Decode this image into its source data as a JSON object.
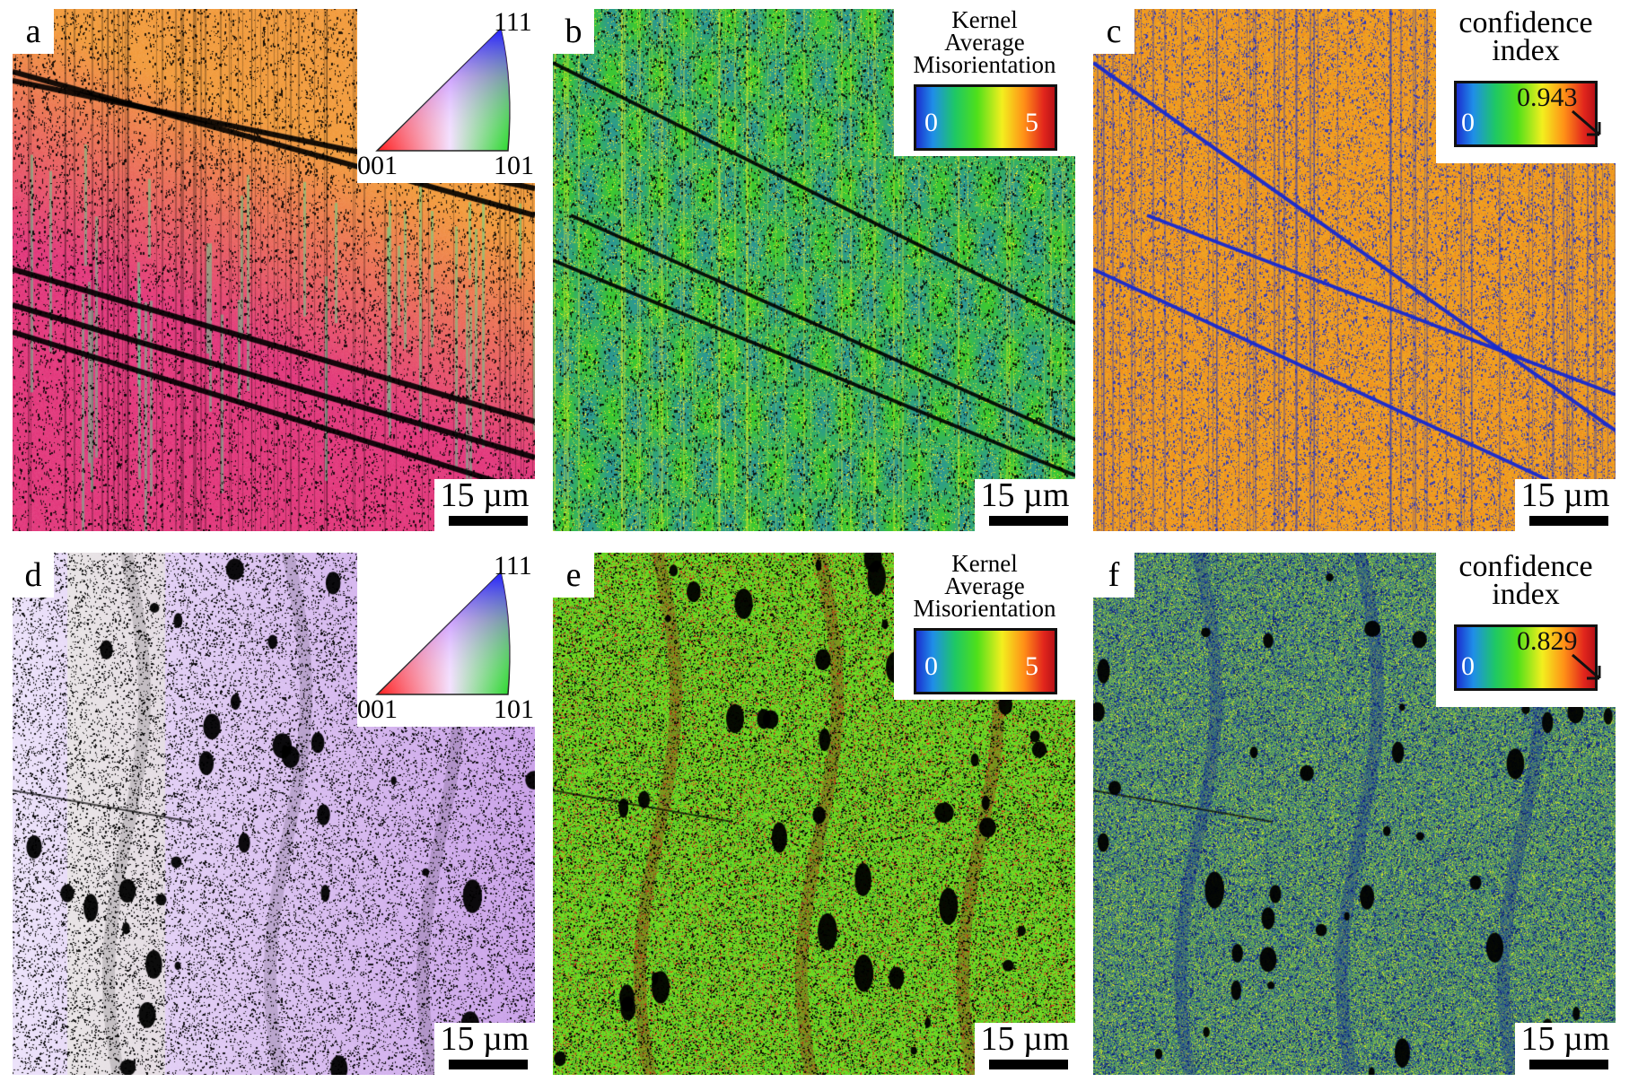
{
  "figure": {
    "panels": [
      {
        "id": "a",
        "label": "a",
        "kind": "ipf",
        "scale_bar": "15 µm",
        "ipf_legend": {
          "corner_top": "111",
          "corner_left": "001",
          "corner_right": "101"
        }
      },
      {
        "id": "b",
        "label": "b",
        "kind": "kam",
        "scale_bar": "15 µm",
        "colorbar": {
          "title": [
            "Kernel",
            "Average",
            "Misorientation"
          ],
          "min": "0",
          "max": "5"
        }
      },
      {
        "id": "c",
        "label": "c",
        "kind": "ci",
        "scale_bar": "15 µm",
        "colorbar": {
          "title": [
            "confidence",
            "index"
          ],
          "min": "0",
          "value": "0.943"
        }
      },
      {
        "id": "d",
        "label": "d",
        "kind": "ipf2",
        "scale_bar": "15 µm",
        "ipf_legend": {
          "corner_top": "111",
          "corner_left": "001",
          "corner_right": "101"
        }
      },
      {
        "id": "e",
        "label": "e",
        "kind": "kam2",
        "scale_bar": "15 µm",
        "colorbar": {
          "title": [
            "Kernel",
            "Average",
            "Misorientation"
          ],
          "min": "0",
          "max": "5"
        }
      },
      {
        "id": "f",
        "label": "f",
        "kind": "ci2",
        "scale_bar": "15 µm",
        "colorbar": {
          "title": [
            "confidence",
            "index"
          ],
          "min": "0",
          "value": "0.829"
        }
      }
    ],
    "colors": {
      "ipf_a_orange": "#f29a3a",
      "ipf_a_magenta": "#e2357a",
      "ipf_d_lavender": "#d6b6ea",
      "kam_green": "#4ccc2a",
      "ci_high_orange": "#f08a1e",
      "ci_low_blue": "#1a2fd0"
    }
  }
}
